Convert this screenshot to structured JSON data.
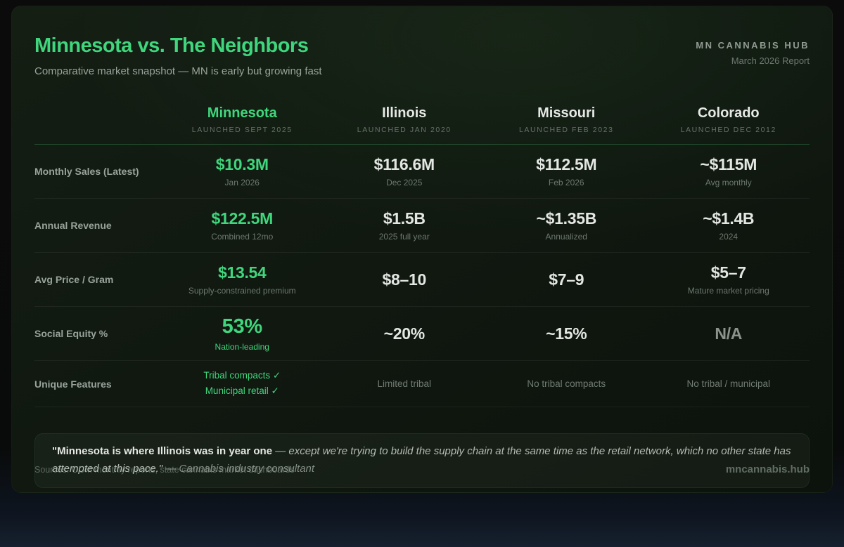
{
  "header": {
    "title": "Minnesota vs. The Neighbors",
    "subtitle": "Comparative market snapshot — MN is early but growing fast",
    "brand": "MN CANNABIS HUB",
    "report_date": "March 2026 Report"
  },
  "colors": {
    "accent_green": "#40d67d",
    "card_background": "#101810",
    "text_primary": "#e3e6e2",
    "text_muted": "#6d786f"
  },
  "chart_data": {
    "type": "table",
    "title": "Minnesota vs. The Neighbors",
    "columns": [
      {
        "name": "Minnesota",
        "launched": "LAUNCHED SEPT 2025"
      },
      {
        "name": "Illinois",
        "launched": "LAUNCHED JAN 2020"
      },
      {
        "name": "Missouri",
        "launched": "LAUNCHED FEB 2023"
      },
      {
        "name": "Colorado",
        "launched": "LAUNCHED DEC 2012"
      }
    ],
    "rows": [
      {
        "label": "Monthly Sales (Latest)",
        "cells": [
          {
            "value": "$10.3M",
            "sub": "Jan 2026"
          },
          {
            "value": "$116.6M",
            "sub": "Dec 2025"
          },
          {
            "value": "$112.5M",
            "sub": "Feb 2026"
          },
          {
            "value": "~$115M",
            "sub": "Avg monthly"
          }
        ]
      },
      {
        "label": "Annual Revenue",
        "cells": [
          {
            "value": "$122.5M",
            "sub": "Combined 12mo"
          },
          {
            "value": "$1.5B",
            "sub": "2025 full year"
          },
          {
            "value": "~$1.35B",
            "sub": "Annualized"
          },
          {
            "value": "~$1.4B",
            "sub": "2024"
          }
        ]
      },
      {
        "label": "Avg Price / Gram",
        "cells": [
          {
            "value": "$13.54",
            "sub": "Supply-constrained premium"
          },
          {
            "value": "$8–10"
          },
          {
            "value": "$7–9"
          },
          {
            "value": "$5–7",
            "sub": "Mature market pricing"
          }
        ]
      },
      {
        "label": "Social Equity %",
        "cells": [
          {
            "value": "53%",
            "sub": "Nation-leading"
          },
          {
            "value": "~20%"
          },
          {
            "value": "~15%"
          },
          {
            "value": "N/A"
          }
        ]
      },
      {
        "label": "Unique Features",
        "cells": [
          {
            "line1": "Tribal compacts ✓",
            "line2": "Municipal retail ✓"
          },
          {
            "value": "Limited tribal"
          },
          {
            "value": "No tribal compacts"
          },
          {
            "value": "No tribal / municipal"
          }
        ]
      }
    ]
  },
  "quote": {
    "lead": "\"Minnesota is where Illinois was in year one",
    "body": " — except we're trying to build the supply chain at the same time as the retail network, which no other state has attempted at this pace.\"",
    "attribution": " — Cannabis industry consultant"
  },
  "footer": {
    "sources": "Sources: OCM monthly reports, state cannabis market dashboards",
    "site": "mncannabis.hub"
  }
}
